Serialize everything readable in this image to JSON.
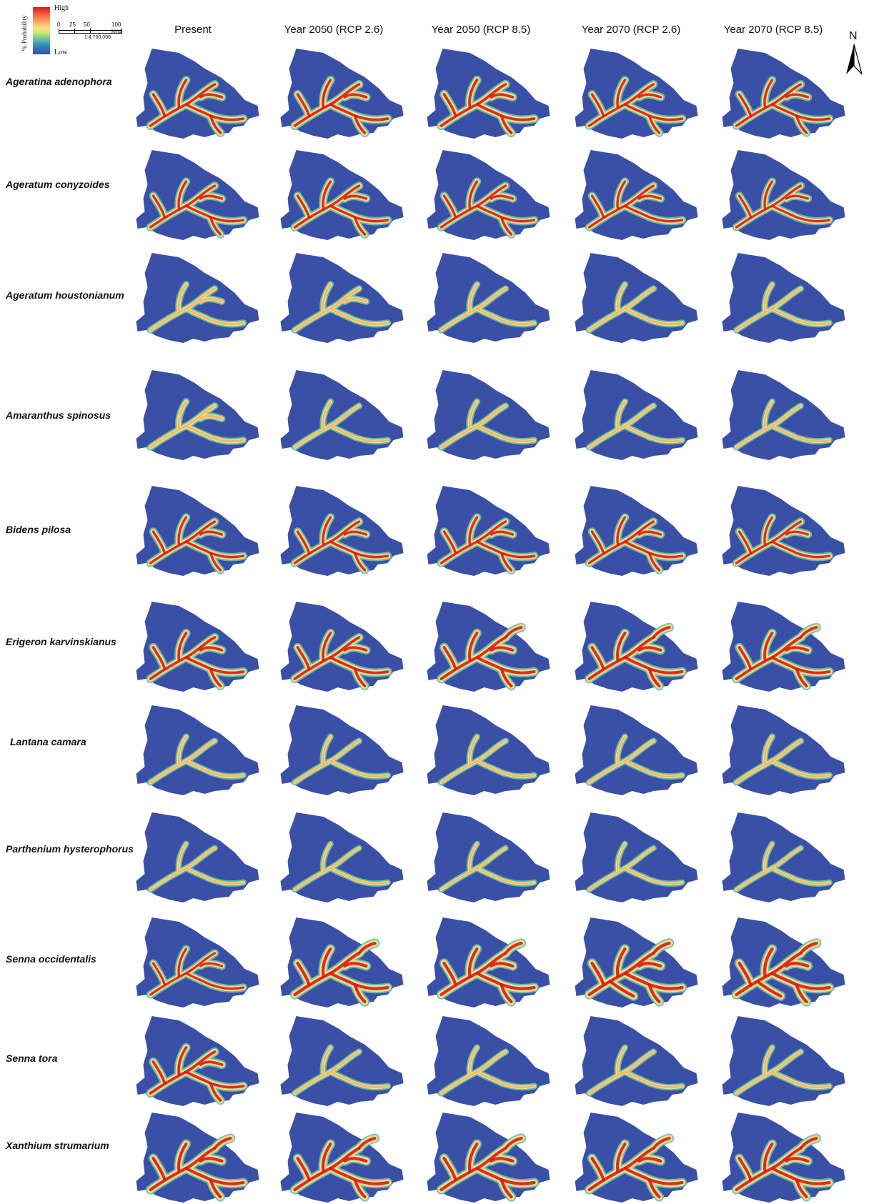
{
  "legend": {
    "title": "% Probability",
    "high": "High",
    "low": "Low",
    "colors": [
      "#d7191c",
      "#fdae61",
      "#fee08b",
      "#c7e96a",
      "#66c2a5",
      "#3288bd",
      "#3a4fa6"
    ],
    "scale_ticks": [
      "0",
      "25",
      "50",
      "100 kms"
    ],
    "scale_ratio": "1:4,700,000"
  },
  "north_label": "N",
  "columns": [
    "Present",
    "Year 2050 (RCP 2.6)",
    "Year 2050 (RCP 8.5)",
    "Year 2070 (RCP 2.6)",
    "Year 2070 (RCP 8.5)"
  ],
  "rows": [
    {
      "species": "Ageratina adenophora",
      "suitability": [
        0.75,
        0.78,
        0.8,
        0.72,
        0.7
      ]
    },
    {
      "species": "Ageratum conyzoides",
      "suitability": [
        0.7,
        0.72,
        0.7,
        0.68,
        0.66
      ]
    },
    {
      "species": "Ageratum houstonianum",
      "suitability": [
        0.45,
        0.45,
        0.42,
        0.43,
        0.4
      ]
    },
    {
      "species": "Amaranthus spinosus",
      "suitability": [
        0.5,
        0.4,
        0.42,
        0.4,
        0.38
      ]
    },
    {
      "species": "Bidens pilosa",
      "suitability": [
        0.7,
        0.7,
        0.72,
        0.7,
        0.68
      ]
    },
    {
      "species": "Erigeron karvinskianus",
      "suitability": [
        0.78,
        0.78,
        0.85,
        0.85,
        0.82
      ]
    },
    {
      "species": "Lantana camara",
      "suitability": [
        0.4,
        0.38,
        0.38,
        0.38,
        0.42
      ]
    },
    {
      "species": "Parthenium hysterophorus",
      "suitability": [
        0.35,
        0.33,
        0.33,
        0.33,
        0.33
      ]
    },
    {
      "species": "Senna occidentalis",
      "suitability": [
        0.65,
        0.92,
        0.92,
        0.95,
        0.95
      ]
    },
    {
      "species": "Senna tora",
      "suitability": [
        0.8,
        0.4,
        0.4,
        0.4,
        0.4
      ]
    },
    {
      "species": "Xanthium strumarium",
      "suitability": [
        0.9,
        0.9,
        0.92,
        0.9,
        0.88
      ]
    }
  ]
}
